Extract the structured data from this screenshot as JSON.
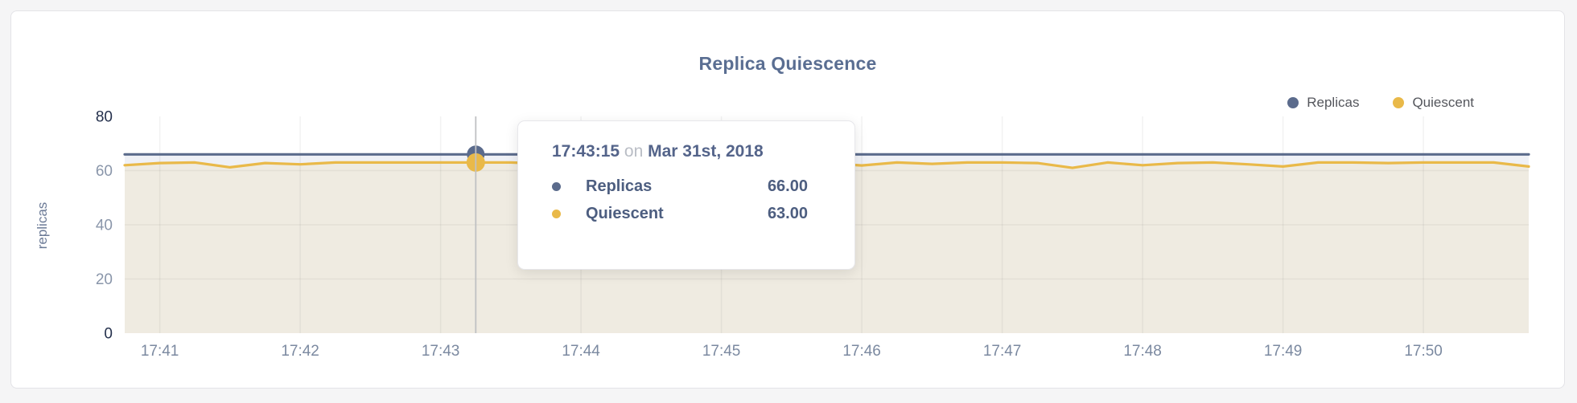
{
  "page": {
    "background": "#f5f5f6",
    "card_background": "#ffffff",
    "card_border": "#e3e3e7"
  },
  "tooltip": {
    "time": "17:43:15",
    "connector": "on",
    "date": "Mar 31st, 2018",
    "rows": [
      {
        "name": "Replicas",
        "value": "66.00",
        "color": "#5b6b8c"
      },
      {
        "name": "Quiescent",
        "value": "63.00",
        "color": "#e9b949"
      }
    ]
  },
  "chart_data": {
    "type": "area",
    "title": "Replica Quiescence",
    "ylabel": "replicas",
    "ylim": [
      0,
      80
    ],
    "yticks": [
      0,
      20,
      40,
      60,
      80
    ],
    "xticks": [
      "17:41",
      "17:42",
      "17:43",
      "17:44",
      "17:45",
      "17:46",
      "17:47",
      "17:48",
      "17:49",
      "17:50"
    ],
    "grid": true,
    "legend_position": "top-right",
    "highlight_x": "17:43:15",
    "x_times": [
      "17:40:45",
      "17:41:00",
      "17:41:15",
      "17:41:30",
      "17:41:45",
      "17:42:00",
      "17:42:15",
      "17:42:30",
      "17:42:45",
      "17:43:00",
      "17:43:15",
      "17:43:30",
      "17:43:45",
      "17:44:00",
      "17:44:15",
      "17:44:30",
      "17:44:45",
      "17:45:00",
      "17:45:15",
      "17:45:30",
      "17:45:45",
      "17:46:00",
      "17:46:15",
      "17:46:30",
      "17:46:45",
      "17:47:00",
      "17:47:15",
      "17:47:30",
      "17:47:45",
      "17:48:00",
      "17:48:15",
      "17:48:30",
      "17:48:45",
      "17:49:00",
      "17:49:15",
      "17:49:30",
      "17:49:45",
      "17:50:00",
      "17:50:15",
      "17:50:30",
      "17:50:45"
    ],
    "series": [
      {
        "name": "Replicas",
        "color": "#5b6b8c",
        "fill": "#eff1f6",
        "values": [
          66,
          66,
          66,
          66,
          66,
          66,
          66,
          66,
          66,
          66,
          66,
          66,
          66,
          66,
          66,
          66,
          66,
          66,
          66,
          66,
          66,
          66,
          66,
          66,
          66,
          66,
          66,
          66,
          66,
          66,
          66,
          66,
          66,
          66,
          66,
          66,
          66,
          66,
          66,
          66,
          66
        ]
      },
      {
        "name": "Quiescent",
        "color": "#e9b949",
        "fill": "#efebe1",
        "values": [
          62,
          62.8,
          63,
          61.2,
          62.8,
          62.3,
          63,
          63,
          63,
          63,
          63,
          63,
          62.5,
          63,
          63,
          62.6,
          63,
          63,
          62.4,
          63,
          62.8,
          61.9,
          63,
          62.5,
          63,
          63,
          62.8,
          61,
          63,
          62,
          62.8,
          63,
          62.3,
          61.5,
          63,
          63,
          62.8,
          63,
          63,
          63,
          61.5
        ]
      }
    ],
    "highlight_values": {
      "Replicas": 66,
      "Quiescent": 63
    },
    "colors": {
      "grid": "rgba(90,90,90,0.08)",
      "crosshair": "#c0c1c3",
      "title": "#5a6e92",
      "xtick": "#7b89a0",
      "ytick": "#8a96aa",
      "ytick_edge": "#25314d",
      "ylabel": "#6b7a96"
    }
  }
}
